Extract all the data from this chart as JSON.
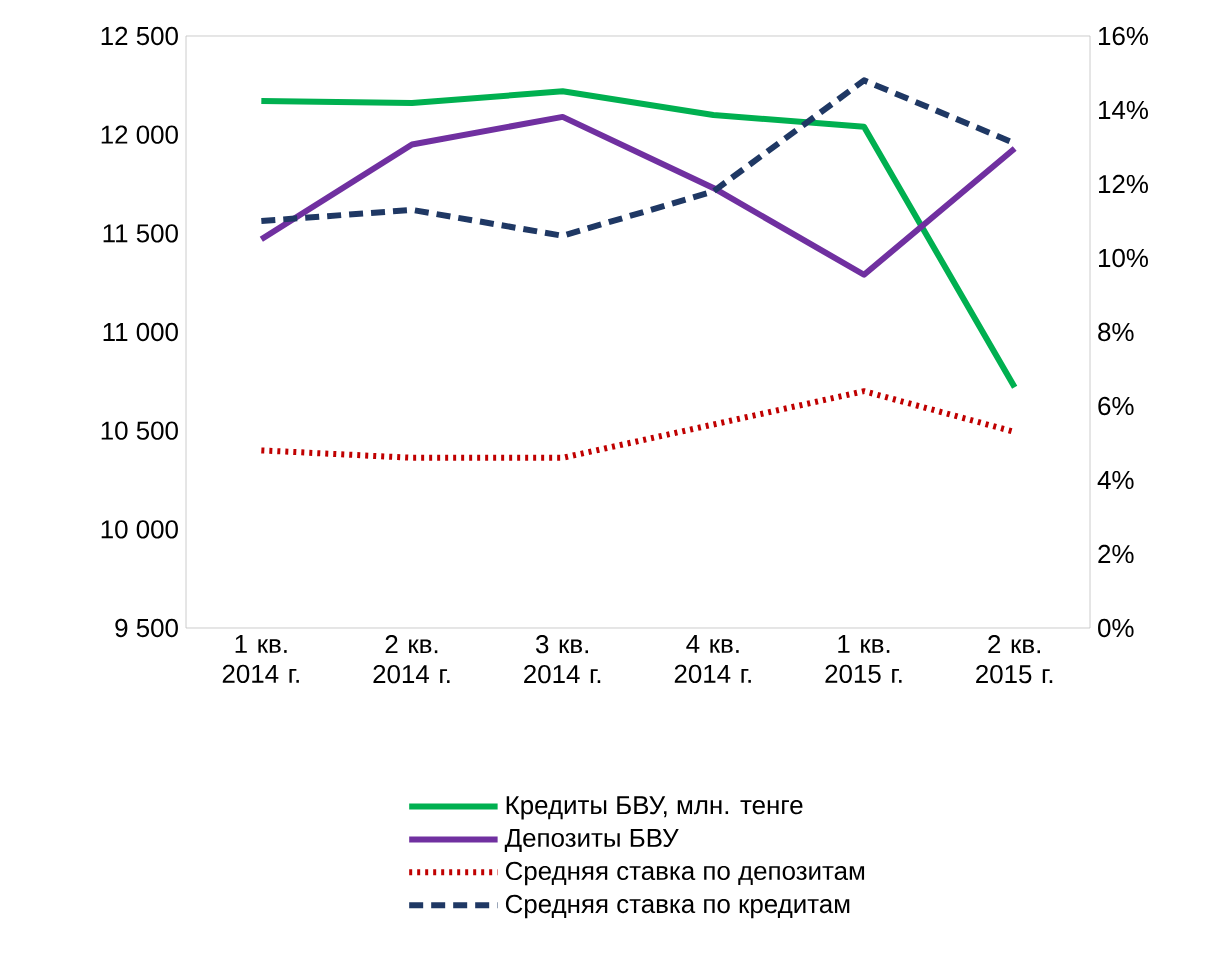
{
  "chart_data": {
    "type": "line",
    "categories": [
      "1 кв. 2014 г.",
      "2 кв. 2014 г.",
      "3 кв. 2014 г.",
      "4 кв. 2014 г.",
      "1 кв. 2015 г.",
      "2 кв. 2015 г."
    ],
    "ylim": [
      9500,
      12500
    ],
    "yticks": [
      {
        "value": 9500,
        "label": "9 500"
      },
      {
        "value": 10000,
        "label": "10 000"
      },
      {
        "value": 10500,
        "label": "10 500"
      },
      {
        "value": 11000,
        "label": "11 000"
      },
      {
        "value": 11500,
        "label": "11 500"
      },
      {
        "value": 12000,
        "label": "12 000"
      },
      {
        "value": 12500,
        "label": "12 500"
      }
    ],
    "y2lim": [
      0,
      16
    ],
    "y2ticks": [
      {
        "value": 0,
        "label": "0%"
      },
      {
        "value": 2,
        "label": "2%"
      },
      {
        "value": 4,
        "label": "4%"
      },
      {
        "value": 6,
        "label": "6%"
      },
      {
        "value": 8,
        "label": "8%"
      },
      {
        "value": 10,
        "label": "10%"
      },
      {
        "value": 12,
        "label": "12%"
      },
      {
        "value": 14,
        "label": "14%"
      },
      {
        "value": 16,
        "label": "16%"
      }
    ],
    "legend": "bottom",
    "series": [
      {
        "name": "Кредиты БВУ, млн. тенге",
        "color": "#00b050",
        "line_style": "solid",
        "values": [
          12170,
          12160,
          12220,
          12100,
          12040,
          10720
        ]
      },
      {
        "name": "Депозиты БВУ",
        "color": "#7030a0",
        "line_style": "solid",
        "values": [
          11470,
          11950,
          12090,
          11730,
          11290,
          11930
        ]
      },
      {
        "name": "Средняя ставка по депозитам",
        "color": "#c00000",
        "line_style": "dotted",
        "axis": "y2",
        "values": [
          4.8,
          4.6,
          4.6,
          5.5,
          6.4,
          5.3
        ]
      },
      {
        "name": "Средняя ставка по кредитам",
        "color": "#1f3864",
        "line_style": "dashed",
        "axis": "y2",
        "values": [
          11.0,
          11.3,
          10.6,
          11.8,
          14.8,
          13.1
        ]
      }
    ]
  }
}
